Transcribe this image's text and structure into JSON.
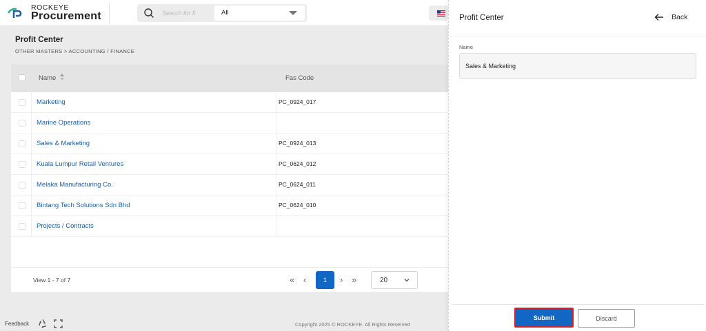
{
  "brand": {
    "line1": "ROCKEYE",
    "line2": "Procurement"
  },
  "search": {
    "placeholder": "Search for fi",
    "scope": "All"
  },
  "page": {
    "title": "Profit Center",
    "breadcrumb": "OTHER MASTERS >  ACCOUNTING / FINANCE"
  },
  "table": {
    "headers": {
      "name": "Name",
      "fas_code": "Fas Code"
    },
    "rows": [
      {
        "name": "Marketing",
        "fas_code": "PC_0924_017"
      },
      {
        "name": "Marine Operations",
        "fas_code": ""
      },
      {
        "name": "Sales & Marketing",
        "fas_code": "PC_0924_013"
      },
      {
        "name": "Kuala Lumpur Retail Ventures",
        "fas_code": "PC_0624_012"
      },
      {
        "name": "Melaka Manufacturing Co.",
        "fas_code": "PC_0624_011"
      },
      {
        "name": "Bintang Tech Solutions Sdn Bhd",
        "fas_code": "PC_0624_010"
      },
      {
        "name": "Projects / Contracts",
        "fas_code": ""
      }
    ]
  },
  "pager": {
    "view_text": "View 1 - 7 of 7",
    "first": "«",
    "prev": "‹",
    "current": "1",
    "next": "›",
    "last": "»",
    "page_size": "20"
  },
  "footer": {
    "feedback": "Feedback",
    "copyright": "Copyright 2025 © ROCKEYE. All Rights Reserved"
  },
  "panel": {
    "title": "Profit Center",
    "back_label": "Back",
    "field_label": "Name",
    "field_value": "Sales & Marketing",
    "submit_label": "Submit",
    "discard_label": "Discard"
  },
  "icons": {
    "search": "search-icon",
    "flag": "us-flag-icon",
    "sort": "sort-icon",
    "back": "arrow-left-icon",
    "recycle": "recycle-icon",
    "expand": "expand-icon"
  },
  "colors": {
    "accent": "#1266c4",
    "link": "#1f5fa8",
    "highlight_border": "#d41e28"
  }
}
